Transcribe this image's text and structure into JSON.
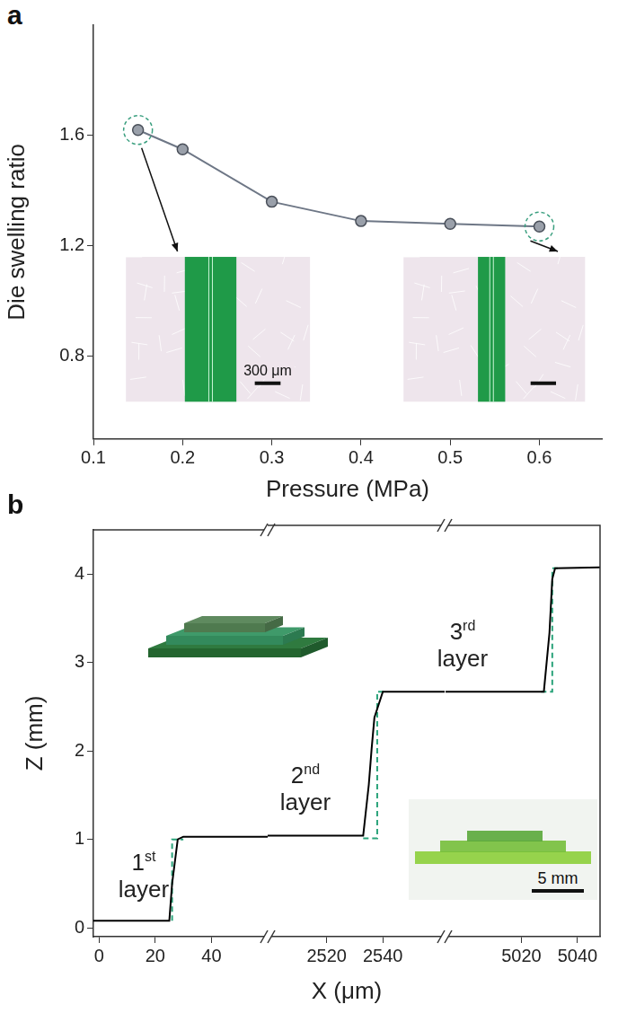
{
  "chart_data": [
    {
      "panel_label": "a",
      "type": "line",
      "x_label": "Pressure (MPa)",
      "y_label": "Die swelling ratio",
      "x": [
        0.15,
        0.2,
        0.3,
        0.4,
        0.5,
        0.6
      ],
      "values": [
        1.62,
        1.55,
        1.36,
        1.29,
        1.28,
        1.27
      ],
      "color": "#6e7786",
      "marker": "circle",
      "line_style": "solid",
      "xlim": [
        0.1,
        0.67
      ],
      "xticks": [
        0.1,
        0.2,
        0.3,
        0.4,
        0.5,
        0.6
      ],
      "ylim": [
        0.5,
        2.0
      ],
      "yticks": [
        0.8,
        1.2,
        1.6
      ],
      "grid": false,
      "annotations": [
        "300 μm"
      ]
    },
    {
      "panel_label": "b",
      "type": "line",
      "x_label": "X (μm)",
      "y_label": "Z (mm)",
      "segments": [
        {
          "xlim": [
            -2,
            60
          ],
          "xticks": [
            0,
            20,
            40
          ]
        },
        {
          "xlim": [
            2499,
            2562
          ],
          "xticks": [
            2520,
            2540
          ]
        },
        {
          "xlim": [
            4993,
            5048
          ],
          "xticks": [
            5020,
            5040
          ]
        }
      ],
      "ylim": [
        -0.1,
        4.5
      ],
      "yticks": [
        0,
        1,
        2,
        3,
        4
      ],
      "series": [
        {
          "color": "#000000",
          "line_style": "solid",
          "x": [
            -2,
            25,
            26,
            28,
            30,
            60,
            2499,
            2533,
            2535,
            2536,
            2537,
            2540,
            2562,
            4993,
            5028,
            5030,
            5031,
            5032,
            5048
          ],
          "values": [
            0.08,
            0.08,
            0.5,
            1.0,
            1.03,
            1.03,
            1.03,
            1.03,
            1.6,
            2.0,
            2.35,
            2.64,
            2.64,
            2.64,
            2.64,
            3.3,
            3.9,
            4.02,
            4.03
          ]
        },
        {
          "color": "#2aa37a",
          "line_style": "dashed",
          "x": [
            26,
            26,
            30,
            30,
            2533,
            2538,
            2538,
            2541,
            2541,
            5027,
            5031,
            5031,
            5034
          ],
          "values": [
            0.08,
            1.0,
            1.0,
            null,
            1.0,
            1.0,
            2.64,
            2.64,
            null,
            2.64,
            2.64,
            4.02,
            4.02
          ]
        }
      ],
      "grid": false,
      "annotations": [
        "1st layer",
        "2nd layer",
        "3rd layer",
        "5 mm"
      ]
    }
  ]
}
